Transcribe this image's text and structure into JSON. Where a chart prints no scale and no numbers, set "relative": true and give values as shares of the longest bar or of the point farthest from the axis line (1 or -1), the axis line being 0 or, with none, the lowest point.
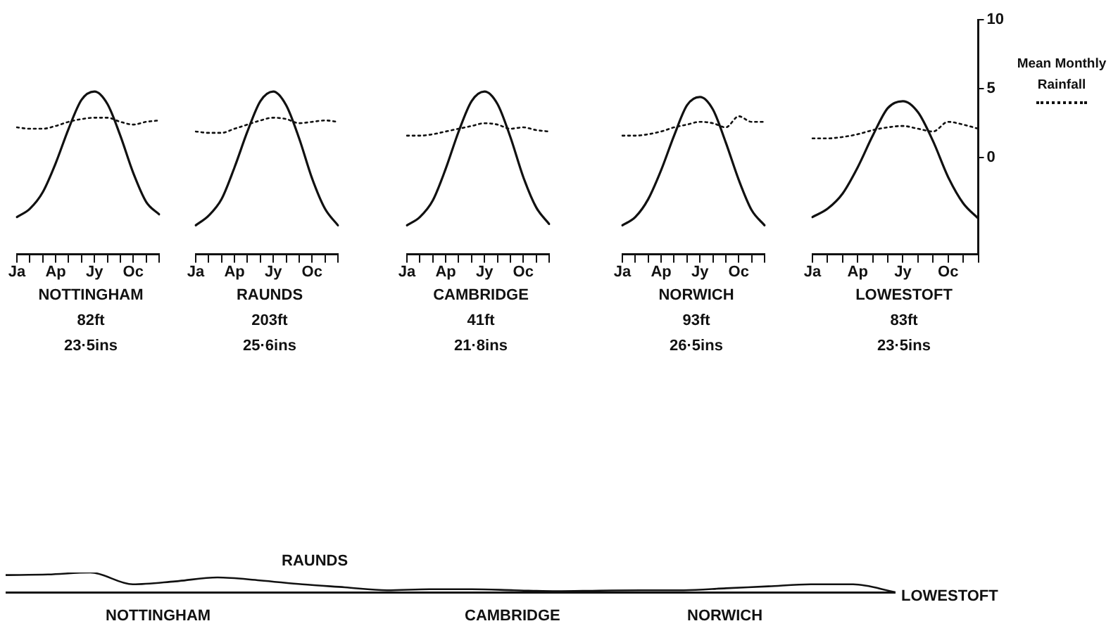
{
  "chart_data": [
    {
      "type": "line",
      "title": "NOTTINGHAM",
      "annotations": [
        "82ft",
        "23·5ins"
      ],
      "categories": [
        "Ja",
        null,
        null,
        "Ap",
        null,
        null,
        "Jy",
        null,
        null,
        "Oc",
        null,
        null
      ],
      "ylim": [
        -7,
        10
      ],
      "tick_labels": "x",
      "marker": "none",
      "series": [
        {
          "color": "#111111",
          "line_style": "solid",
          "values": [
            -4.3,
            -3.7,
            -2.5,
            -0.4,
            2.1,
            4.2,
            4.8,
            3.9,
            1.6,
            -1.1,
            -3.2,
            -4.1
          ]
        },
        {
          "color": "#111111",
          "line_style": "dotted",
          "values": [
            2.2,
            2.1,
            2.1,
            2.3,
            2.6,
            2.8,
            2.9,
            2.9,
            2.6,
            2.4,
            2.6,
            2.7
          ]
        }
      ]
    },
    {
      "type": "line",
      "title": "RAUNDS",
      "annotations": [
        "203ft",
        "25·6ins"
      ],
      "categories": [
        "Ja",
        null,
        null,
        "Ap",
        null,
        null,
        "Jy",
        null,
        null,
        "Oc",
        null,
        null
      ],
      "ylim": [
        -7,
        10
      ],
      "tick_labels": "x",
      "marker": "none",
      "series": [
        {
          "color": "#111111",
          "line_style": "solid",
          "values": [
            -4.9,
            -4.2,
            -3.0,
            -0.7,
            1.9,
            4.1,
            4.8,
            3.8,
            1.4,
            -1.5,
            -3.7,
            -4.9
          ]
        },
        {
          "color": "#111111",
          "line_style": "dotted",
          "values": [
            1.9,
            1.8,
            1.8,
            2.1,
            2.4,
            2.7,
            2.9,
            2.8,
            2.5,
            2.6,
            2.7,
            2.6
          ]
        }
      ]
    },
    {
      "type": "line",
      "title": "CAMBRIDGE",
      "annotations": [
        "41ft",
        "21·8ins"
      ],
      "categories": [
        "Ja",
        null,
        null,
        "Ap",
        null,
        null,
        "Jy",
        null,
        null,
        "Oc",
        null,
        null
      ],
      "ylim": [
        -7,
        10
      ],
      "tick_labels": "x",
      "marker": "none",
      "series": [
        {
          "color": "#111111",
          "line_style": "solid",
          "values": [
            -4.9,
            -4.3,
            -3.1,
            -0.8,
            1.9,
            4.1,
            4.8,
            3.9,
            1.5,
            -1.4,
            -3.6,
            -4.8
          ]
        },
        {
          "color": "#111111",
          "line_style": "dotted",
          "values": [
            1.6,
            1.6,
            1.7,
            1.9,
            2.1,
            2.3,
            2.5,
            2.4,
            2.1,
            2.2,
            2.0,
            1.9
          ]
        }
      ]
    },
    {
      "type": "line",
      "title": "NORWICH",
      "annotations": [
        "93ft",
        "26·5ins"
      ],
      "categories": [
        "Ja",
        null,
        null,
        "Ap",
        null,
        null,
        "Jy",
        null,
        null,
        "Oc",
        null,
        null
      ],
      "ylim": [
        -7,
        10
      ],
      "tick_labels": "x",
      "marker": "none",
      "series": [
        {
          "color": "#111111",
          "line_style": "solid",
          "values": [
            -4.9,
            -4.3,
            -3.0,
            -0.9,
            1.6,
            3.8,
            4.4,
            3.5,
            1.1,
            -1.6,
            -3.8,
            -4.9
          ]
        },
        {
          "color": "#111111",
          "line_style": "dotted",
          "values": [
            1.6,
            1.6,
            1.7,
            1.9,
            2.2,
            2.4,
            2.6,
            2.5,
            2.2,
            3.0,
            2.6,
            2.6
          ]
        }
      ]
    },
    {
      "type": "line",
      "title": "LOWESTOFT",
      "annotations": [
        "83ft",
        "23·5ins"
      ],
      "categories": [
        "Ja",
        null,
        null,
        "Ap",
        null,
        null,
        "Jy",
        null,
        null,
        "Oc",
        null,
        null
      ],
      "ylim": [
        -7,
        10
      ],
      "yticks": [
        0,
        5,
        10
      ],
      "marker": "none",
      "legend": "right",
      "series": [
        {
          "color": "#111111",
          "line_style": "solid",
          "values": [
            -4.3,
            -3.7,
            -2.6,
            -0.7,
            1.6,
            3.6,
            4.1,
            3.3,
            1.2,
            -1.4,
            -3.3,
            -4.4
          ]
        },
        {
          "name": "Mean Monthly Rainfall",
          "color": "#111111",
          "line_style": "dotted",
          "values": [
            1.4,
            1.4,
            1.5,
            1.7,
            2.0,
            2.2,
            2.3,
            2.1,
            1.9,
            2.6,
            2.4,
            2.1
          ]
        }
      ]
    },
    {
      "type": "line",
      "relative": true,
      "annotations": [
        "RAUNDS",
        "NOTTINGHAM",
        "CAMBRIDGE",
        "NORWICH",
        "LOWESTOFT"
      ],
      "categories": [
        null,
        null,
        null,
        null,
        null,
        null,
        null,
        null,
        null,
        null,
        null,
        null,
        null,
        null,
        null,
        null,
        null,
        null,
        null,
        null,
        null,
        null
      ],
      "marker": "none",
      "tick_labels": false,
      "series": [
        {
          "color": "#111111",
          "line_style": "solid",
          "values": [
            0.87,
            0.9,
            1.0,
            0.4,
            0.55,
            0.75,
            0.6,
            0.4,
            0.25,
            0.1,
            0.15,
            0.15,
            0.1,
            0.05,
            0.08,
            0.1,
            0.1,
            0.2,
            0.3,
            0.4,
            0.4,
            0.0
          ]
        }
      ]
    }
  ]
}
